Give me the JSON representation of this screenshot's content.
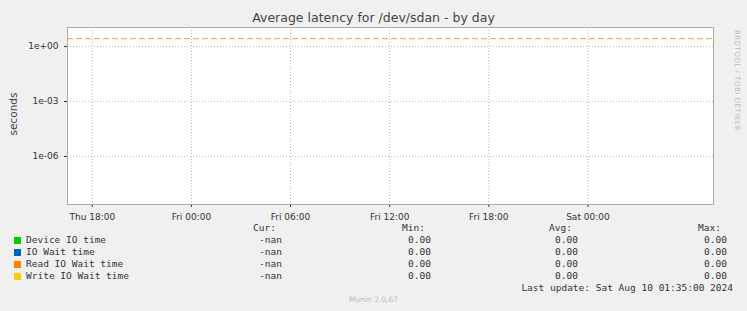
{
  "chart_data": {
    "type": "line",
    "title": "Average latency for /dev/sdan - by day",
    "y_label": "seconds",
    "log": "y",
    "grid": true,
    "x": [],
    "xlim": [
      16.5,
      55.6
    ],
    "xticks": [
      {
        "value": 18,
        "label": "Thu 18:00"
      },
      {
        "value": 24,
        "label": "Fri 00:00"
      },
      {
        "value": 30,
        "label": "Fri 06:00"
      },
      {
        "value": 36,
        "label": "Fri 12:00"
      },
      {
        "value": 42,
        "label": "Fri 18:00"
      },
      {
        "value": 48,
        "label": "Sat 00:00"
      }
    ],
    "ylim": [
      2.4e-09,
      11
    ],
    "yticks": [
      {
        "value": 1e-06,
        "label": "1e-06"
      },
      {
        "value": 0.001,
        "label": "1e-03"
      },
      {
        "value": 1,
        "label": "1e+00"
      }
    ],
    "hlines": [
      {
        "value": 2.7,
        "color": "#f0a030",
        "line_style": "dashed"
      }
    ],
    "stats_columns": [
      "Cur:",
      "Min:",
      "Avg:",
      "Max:"
    ],
    "series": [
      {
        "name": "Device IO time",
        "color": "#00cc00",
        "values": [],
        "stats": [
          "-nan",
          "0.00",
          "0.00",
          "0.00"
        ]
      },
      {
        "name": "IO Wait time",
        "color": "#0066b3",
        "values": [],
        "stats": [
          "-nan",
          "0.00",
          "0.00",
          "0.00"
        ]
      },
      {
        "name": "Read IO Wait time",
        "color": "#ff8000",
        "values": [],
        "stats": [
          "-nan",
          "0.00",
          "0.00",
          "0.00"
        ]
      },
      {
        "name": "Write IO Wait time",
        "color": "#ffcc00",
        "values": [],
        "stats": [
          "-nan",
          "0.00",
          "0.00",
          "0.00"
        ]
      }
    ],
    "last_update": "Last update: Sat Aug 10 01:35:00 2024",
    "footer": "Munin 2.0.67",
    "watermark": "RRDTOOL / TOBI OETIKER"
  }
}
